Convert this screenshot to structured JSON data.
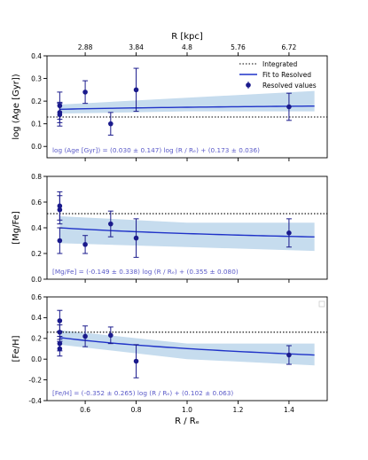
{
  "colors": {
    "point": "#1a1a8c",
    "fit": "#1f32c8",
    "band": "#c6dcee",
    "integrated": "#000000",
    "equation": "#5a5ac8",
    "axis": "#000000"
  },
  "chart_data": [
    {
      "type": "scatter",
      "ylabel": "log (Age [Gyr])",
      "ylim": [
        -0.05,
        0.4
      ],
      "yticks": [
        0.0,
        0.1,
        0.2,
        0.3,
        0.4
      ],
      "xlim": [
        0.45,
        1.55
      ],
      "integrated": 0.13,
      "fit": {
        "slope": 0.03,
        "intercept": 0.173,
        "band_low": [
          0.145,
          0.155,
          0.155
        ],
        "band_high": [
          0.185,
          0.215,
          0.245
        ]
      },
      "points": [
        {
          "x": 0.5,
          "y": 0.18,
          "err": 0.06
        },
        {
          "x": 0.5,
          "y": 0.15,
          "err": 0.045
        },
        {
          "x": 0.5,
          "y": 0.14,
          "err": 0.05
        },
        {
          "x": 0.6,
          "y": 0.24,
          "err": 0.05
        },
        {
          "x": 0.7,
          "y": 0.1,
          "err": 0.05
        },
        {
          "x": 0.8,
          "y": 0.25,
          "err": 0.095
        },
        {
          "x": 1.4,
          "y": 0.175,
          "err": 0.06
        }
      ],
      "equation": "log (Age [Gyr]) = (0.030 ± 0.147) log (R / Rₑ) + (0.173 ± 0.036)",
      "legend": {
        "integrated": "Integrated",
        "fit": "Fit to Resolved",
        "resolved": "Resolved values"
      },
      "top_axis": {
        "label": "R [kpc]",
        "ticks": [
          "2.88",
          "3.84",
          "4.8",
          "5.76",
          "6.72"
        ]
      }
    },
    {
      "type": "scatter",
      "ylabel": "[Mg/Fe]",
      "ylim": [
        0.0,
        0.8
      ],
      "yticks": [
        0.0,
        0.2,
        0.4,
        0.6,
        0.8
      ],
      "xlim": [
        0.45,
        1.55
      ],
      "integrated": 0.51,
      "fit": {
        "slope": -0.149,
        "intercept": 0.355,
        "band_low": [
          0.28,
          0.25,
          0.22
        ],
        "band_high": [
          0.49,
          0.44,
          0.44
        ]
      },
      "points": [
        {
          "x": 0.5,
          "y": 0.57,
          "err": 0.11
        },
        {
          "x": 0.5,
          "y": 0.54,
          "err": 0.11
        },
        {
          "x": 0.5,
          "y": 0.3,
          "err": 0.1
        },
        {
          "x": 0.6,
          "y": 0.27,
          "err": 0.07
        },
        {
          "x": 0.7,
          "y": 0.43,
          "err": 0.1
        },
        {
          "x": 0.8,
          "y": 0.32,
          "err": 0.15
        },
        {
          "x": 1.4,
          "y": 0.36,
          "err": 0.11
        }
      ],
      "equation": "[Mg/Fe] = (-0.149 ± 0.338) log (R / Rₑ) + (0.355 ± 0.080)"
    },
    {
      "type": "scatter",
      "ylabel": "[Fe/H]",
      "xlabel": "R / Rₑ",
      "ylim": [
        -0.4,
        0.6
      ],
      "yticks": [
        -0.4,
        -0.2,
        0.0,
        0.2,
        0.4,
        0.6
      ],
      "xticks": [
        "0.6",
        "0.8",
        "1.0",
        "1.2",
        "1.4"
      ],
      "xtick_values": [
        0.6,
        0.8,
        1.0,
        1.2,
        1.4
      ],
      "xlim": [
        0.45,
        1.55
      ],
      "integrated": 0.26,
      "fit": {
        "slope": -0.352,
        "intercept": 0.102,
        "band_low": [
          0.14,
          0.0,
          -0.06
        ],
        "band_high": [
          0.28,
          0.15,
          0.15
        ]
      },
      "points": [
        {
          "x": 0.5,
          "y": 0.37,
          "err": 0.1
        },
        {
          "x": 0.5,
          "y": 0.26,
          "err": 0.07
        },
        {
          "x": 0.5,
          "y": 0.15,
          "err": 0.07
        },
        {
          "x": 0.5,
          "y": 0.1,
          "err": 0.07
        },
        {
          "x": 0.6,
          "y": 0.22,
          "err": 0.1
        },
        {
          "x": 0.7,
          "y": 0.23,
          "err": 0.08
        },
        {
          "x": 0.8,
          "y": -0.02,
          "err": 0.16
        },
        {
          "x": 1.4,
          "y": 0.04,
          "err": 0.09
        }
      ],
      "equation": "[Fe/H] = (-0.352 ± 0.265) log (R / Rₑ) + (0.102 ± 0.063)"
    }
  ]
}
